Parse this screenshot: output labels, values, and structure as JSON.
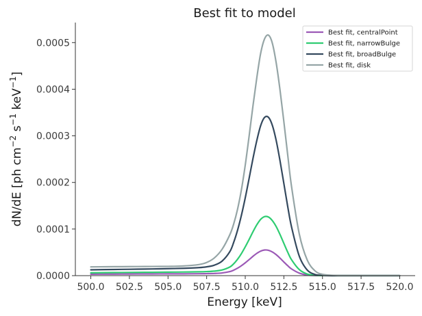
{
  "chart_data": {
    "type": "line",
    "title": "Best fit to model",
    "xlabel": "Energy [keV]",
    "ylabel_parts": {
      "main": "dN/dE [ph cm",
      "exp1": "−2",
      "mid": " s",
      "exp2": "−1",
      "mid2": " keV",
      "exp3": "−1",
      "end": "]"
    },
    "xlim": [
      499,
      521
    ],
    "ylim": [
      0,
      0.000543
    ],
    "x_ticks": [
      500.0,
      502.5,
      505.0,
      507.5,
      510.0,
      512.5,
      515.0,
      517.5,
      520.0
    ],
    "x_tick_labels": [
      "500.0",
      "502.5",
      "505.0",
      "507.5",
      "510.0",
      "512.5",
      "515.0",
      "517.5",
      "520.0"
    ],
    "y_ticks": [
      0,
      0.0001,
      0.0002,
      0.0003,
      0.0004,
      0.0005
    ],
    "y_tick_labels": [
      "0.0000",
      "0.0001",
      "0.0002",
      "0.0003",
      "0.0004",
      "0.0005"
    ],
    "grid": false,
    "legend_position": "top-right",
    "x": [
      500.0,
      501.0,
      502.0,
      503.0,
      504.0,
      505.0,
      506.0,
      507.0,
      507.5,
      508.0,
      508.5,
      509.0,
      509.25,
      509.5,
      509.75,
      510.0,
      510.25,
      510.5,
      510.75,
      511.0,
      511.25,
      511.5,
      511.75,
      512.0,
      512.25,
      512.5,
      512.75,
      513.0,
      513.5,
      514.0,
      514.5,
      515.0,
      516.0,
      517.0,
      518.0,
      519.0,
      520.0
    ],
    "series": [
      {
        "name": "Best fit, centralPoint",
        "color": "#9b59b6",
        "values": [
          3.1e-06,
          3.3e-06,
          3.4e-06,
          3.6e-06,
          3.7e-06,
          3.8e-06,
          3.9e-06,
          4.1e-06,
          4.3e-06,
          4.7e-06,
          5.8e-06,
          8.7e-06,
          1.18e-05,
          1.6e-05,
          2.13e-05,
          2.75e-05,
          3.44e-05,
          4.15e-05,
          4.79e-05,
          5.27e-05,
          5.5e-05,
          5.44e-05,
          5.09e-05,
          4.51e-05,
          3.76e-05,
          2.93e-05,
          2.13e-05,
          1.43e-05,
          5.4e-06,
          1.5e-06,
          3e-07,
          1e-07,
          0.0,
          0.0,
          0.0,
          0.0,
          0.0
        ]
      },
      {
        "name": "Best fit, narrowBulge",
        "color": "#2ecc71",
        "values": [
          6.1e-06,
          6.4e-06,
          6.7e-06,
          7e-06,
          7.2e-06,
          7.5e-06,
          7.8e-06,
          8.2e-06,
          8.7e-06,
          9.7e-06,
          1.22e-05,
          1.85e-05,
          2.54e-05,
          3.51e-05,
          4.73e-05,
          6.18e-05,
          7.76e-05,
          9.41e-05,
          0.0001092,
          0.0001209,
          0.0001267,
          0.0001259,
          0.0001183,
          0.0001055,
          8.83e-05,
          6.92e-05,
          5.04e-05,
          3.4e-05,
          1.29e-05,
          3.6e-06,
          7e-07,
          1e-07,
          0.0,
          0.0,
          0.0,
          0.0,
          0.0
        ]
      },
      {
        "name": "Best fit, broadBulge",
        "color": "#34495e",
        "values": [
          1.25e-05,
          1.3e-05,
          1.35e-05,
          1.39e-05,
          1.44e-05,
          1.5e-05,
          1.58e-05,
          1.72e-05,
          1.89e-05,
          2.25e-05,
          3.12e-05,
          5.14e-05,
          7.13e-05,
          9.73e-05,
          0.0001293,
          0.0001669,
          0.0002087,
          0.0002513,
          0.0002902,
          0.0003221,
          0.0003395,
          0.0003398,
          0.0003229,
          0.0002905,
          0.0002466,
          0.0001976,
          0.0001482,
          0.000104,
          4.16e-05,
          1.25e-05,
          2.7e-06,
          5e-07,
          0.0,
          0.0,
          0.0,
          0.0,
          0.0
        ]
      },
      {
        "name": "Best fit, disk",
        "color": "#95a5a6",
        "values": [
          1.88e-05,
          1.91e-05,
          1.93e-05,
          1.95e-05,
          1.97e-05,
          1.99e-05,
          2.07e-05,
          2.38e-05,
          2.82e-05,
          3.81e-05,
          5.66e-05,
          8.77e-05,
          0.0001108,
          0.0001424,
          0.000184,
          0.0002372,
          0.0002994,
          0.0003644,
          0.0004251,
          0.0004775,
          0.000508,
          0.000516,
          0.0004991,
          0.0004572,
          0.0003985,
          0.0003302,
          0.0002587,
          0.0001905,
          8.92e-05,
          3.45e-05,
          1.08e-05,
          2.8e-06,
          2e-07,
          0.0,
          0.0,
          0.0,
          0.0
        ]
      }
    ]
  }
}
